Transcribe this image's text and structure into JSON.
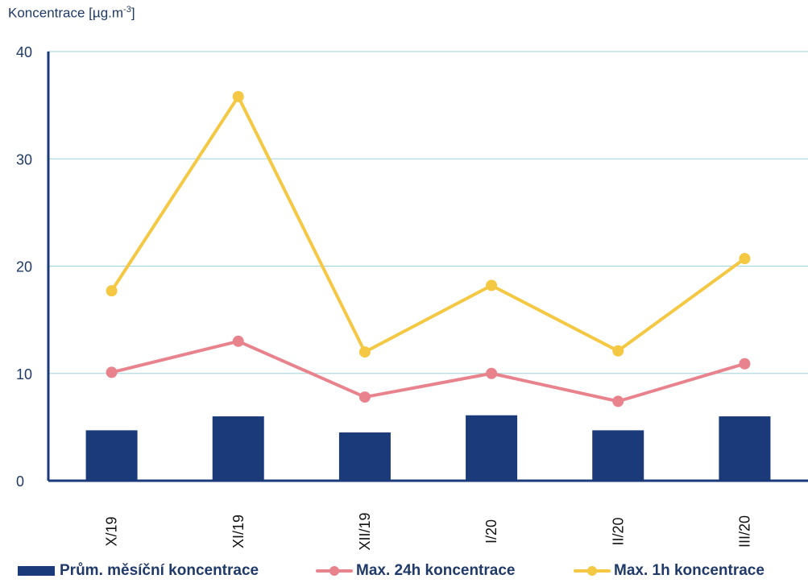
{
  "chart_data": {
    "type": "bar+line",
    "ylabel_main": "Koncentrace [µg.m",
    "ylabel_sup": "-3",
    "ylabel_close": "]",
    "ylim": [
      0,
      40
    ],
    "yticks": [
      0,
      10,
      20,
      30,
      40
    ],
    "grid": true,
    "legend_position": "bottom",
    "categories": [
      "X/19",
      "XI/19",
      "XII/19",
      "I/20",
      "II/20",
      "III/20"
    ],
    "series": [
      {
        "name": "Prům. měsíční koncentrace",
        "type": "bar",
        "color": "#1b3a7a",
        "values": [
          4.7,
          6.0,
          4.5,
          6.1,
          4.7,
          6.0
        ]
      },
      {
        "name": "Max. 24h koncentrace",
        "type": "line",
        "color": "#e8838d",
        "values": [
          10.1,
          13.0,
          7.8,
          10.0,
          7.4,
          10.9
        ]
      },
      {
        "name": "Max. 1h koncentrace",
        "type": "line",
        "color": "#f5c843",
        "values": [
          17.7,
          35.8,
          12.0,
          18.2,
          12.1,
          20.7
        ]
      }
    ]
  }
}
